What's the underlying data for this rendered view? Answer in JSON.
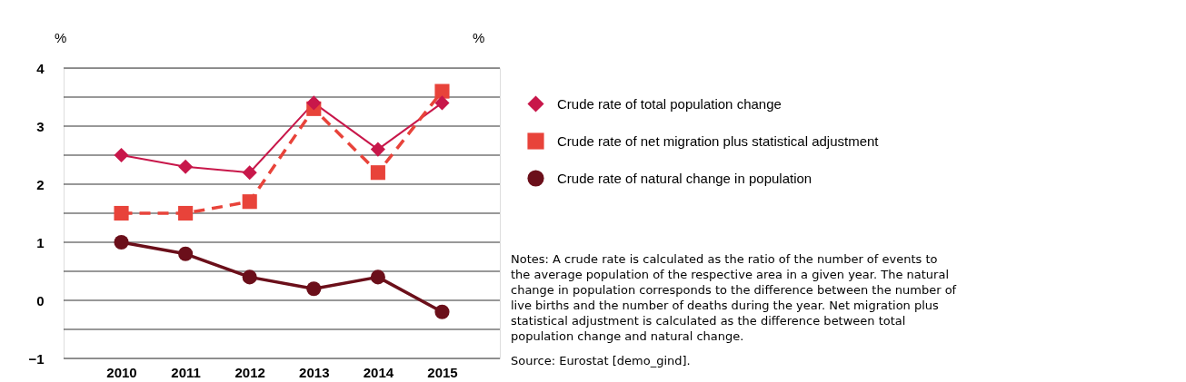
{
  "chart_data": {
    "type": "line",
    "ylabel": "%",
    "y2label": "%",
    "categories": [
      "2010",
      "2011",
      "2012",
      "2013",
      "2014",
      "2015"
    ],
    "series": [
      {
        "name": "Crude rate of total population change",
        "color": "#c8174a",
        "marker": "diamond",
        "line_style": "solid",
        "values": [
          2.5,
          2.3,
          2.2,
          3.4,
          2.6,
          3.4
        ]
      },
      {
        "name": "Crude rate of net migration plus statistical adjustment",
        "color": "#e8433a",
        "marker": "square",
        "line_style": "dashed",
        "values": [
          1.5,
          1.5,
          1.7,
          3.3,
          2.2,
          3.6
        ]
      },
      {
        "name": "Crude rate of natural change in population",
        "color": "#6b0f1a",
        "marker": "circle",
        "line_style": "solid",
        "values": [
          1.0,
          0.8,
          0.4,
          0.2,
          0.4,
          -0.2
        ]
      }
    ],
    "ylim": [
      -1,
      4
    ],
    "yticks": [
      -1,
      {
        "value": -0.5,
        "label": null
      },
      0,
      {
        "value": 0.5,
        "label": null
      },
      1,
      {
        "value": 1.5,
        "label": null
      },
      2,
      {
        "value": 2.5,
        "label": null
      },
      3,
      {
        "value": 3.5,
        "label": null
      },
      4
    ],
    "grid": "y",
    "legend": "right",
    "annotations": [
      "Notes: A crude rate is calculated as the ratio of the number of events to the average population of the respective area in a given year. The natural change in population corresponds to the difference between the number of live births and the number of deaths during the year. Net migration plus statistical adjustment is calculated as the difference between total population change and natural change.",
      "Source: Eurostat [demo_gind]."
    ]
  }
}
